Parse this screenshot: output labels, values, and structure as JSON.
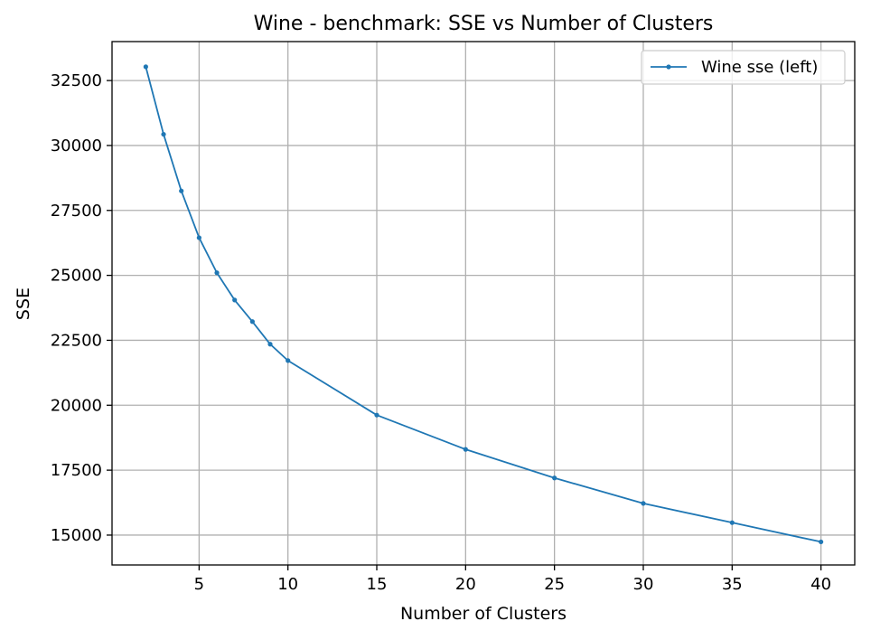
{
  "chart_data": {
    "type": "line",
    "title": "Wine - benchmark: SSE vs Number of Clusters",
    "xlabel": "Number of Clusters",
    "ylabel": "SSE",
    "xlim": [
      0.1,
      41.9
    ],
    "ylim": [
      13850,
      34000
    ],
    "xticks": [
      5,
      10,
      15,
      20,
      25,
      30,
      35,
      40
    ],
    "yticks": [
      15000,
      17500,
      20000,
      22500,
      25000,
      27500,
      30000,
      32500
    ],
    "grid": true,
    "legend_position": "top-right",
    "series": [
      {
        "name": "Wine sse (left)",
        "color": "#1f77b4",
        "marker": "dot",
        "x": [
          2,
          3,
          4,
          5,
          6,
          7,
          8,
          9,
          10,
          15,
          20,
          25,
          30,
          35,
          40
        ],
        "y": [
          33030,
          30430,
          28250,
          26450,
          25100,
          24050,
          23220,
          22350,
          21720,
          19620,
          18300,
          17200,
          16220,
          15480,
          14740
        ]
      }
    ]
  }
}
